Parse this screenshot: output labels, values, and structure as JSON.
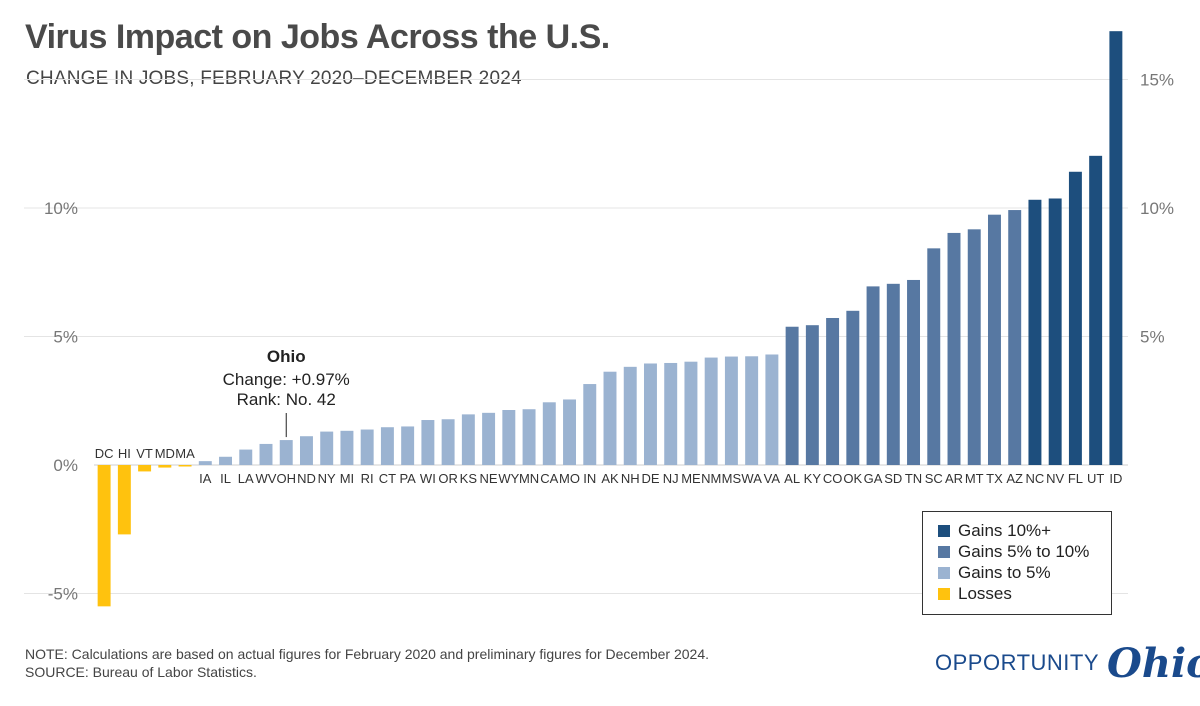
{
  "title": "Virus Impact on Jobs Across the U.S.",
  "subtitle": "CHANGE IN JOBS, FEBRUARY 2020–DECEMBER 2024",
  "annotation": {
    "name": "Ohio",
    "change": "Change: +0.97%",
    "rank": "Rank: No. 42",
    "state": "OH"
  },
  "legend": [
    {
      "label": "Gains 10%+",
      "color": "#1d4e7d"
    },
    {
      "label": "Gains 5% to 10%",
      "color": "#5778a2"
    },
    {
      "label": "Gains to 5%",
      "color": "#9bb3d1"
    },
    {
      "label": "Losses",
      "color": "#ffc20e"
    }
  ],
  "note": "NOTE: Calculations are based on actual figures for February 2020 and preliminary figures for December 2024.",
  "source": "SOURCE: Bureau of Labor Statistics.",
  "logo": {
    "word1": "OPPORTUNITY",
    "word2": "Ohio"
  },
  "chart_data": {
    "type": "bar",
    "ylim": [
      -6,
      17
    ],
    "yticks_left": [
      -5,
      0,
      5,
      10
    ],
    "yticks_right": [
      5,
      10,
      15
    ],
    "ytick_labels_left": [
      "-5%",
      "0%",
      "5%",
      "10%"
    ],
    "ytick_labels_right": [
      "5%",
      "10%",
      "15%"
    ],
    "grid": true,
    "legend_position": "bottom-right",
    "categories": [
      "DC",
      "HI",
      "VT",
      "MD",
      "MA",
      "IA",
      "IL",
      "LA",
      "WV",
      "OH",
      "ND",
      "NY",
      "MI",
      "RI",
      "CT",
      "PA",
      "WI",
      "OR",
      "KS",
      "NE",
      "WY",
      "MN",
      "CA",
      "MO",
      "IN",
      "AK",
      "NH",
      "DE",
      "NJ",
      "ME",
      "NM",
      "MS",
      "WA",
      "VA",
      "AL",
      "KY",
      "CO",
      "OK",
      "GA",
      "SD",
      "TN",
      "SC",
      "AR",
      "MT",
      "TX",
      "AZ",
      "NC",
      "NV",
      "FL",
      "UT",
      "ID"
    ],
    "values": [
      -5.5,
      -2.7,
      -0.25,
      -0.1,
      -0.05,
      0.15,
      0.32,
      0.6,
      0.82,
      0.97,
      1.12,
      1.3,
      1.33,
      1.38,
      1.47,
      1.5,
      1.75,
      1.78,
      1.97,
      2.03,
      2.14,
      2.17,
      2.44,
      2.55,
      3.15,
      3.63,
      3.82,
      3.95,
      3.97,
      4.02,
      4.18,
      4.22,
      4.23,
      4.3,
      5.38,
      5.44,
      5.72,
      6.0,
      6.95,
      7.05,
      7.2,
      8.43,
      9.03,
      9.17,
      9.74,
      9.92,
      10.32,
      10.37,
      11.41,
      12.03,
      16.88
    ],
    "groups": [
      "losses",
      "losses",
      "losses",
      "losses",
      "losses",
      "gains5",
      "gains5",
      "gains5",
      "gains5",
      "gains5",
      "gains5",
      "gains5",
      "gains5",
      "gains5",
      "gains5",
      "gains5",
      "gains5",
      "gains5",
      "gains5",
      "gains5",
      "gains5",
      "gains5",
      "gains5",
      "gains5",
      "gains5",
      "gains5",
      "gains5",
      "gains5",
      "gains5",
      "gains5",
      "gains5",
      "gains5",
      "gains5",
      "gains5",
      "gains10",
      "gains10",
      "gains10",
      "gains10",
      "gains10",
      "gains10",
      "gains10",
      "gains10",
      "gains10",
      "gains10",
      "gains10",
      "gains10",
      "gains10p",
      "gains10p",
      "gains10p",
      "gains10p",
      "gains10p"
    ],
    "colors": {
      "losses": "#ffc20e",
      "gains5": "#9bb3d1",
      "gains10": "#5778a2",
      "gains10p": "#1d4e7d"
    }
  }
}
